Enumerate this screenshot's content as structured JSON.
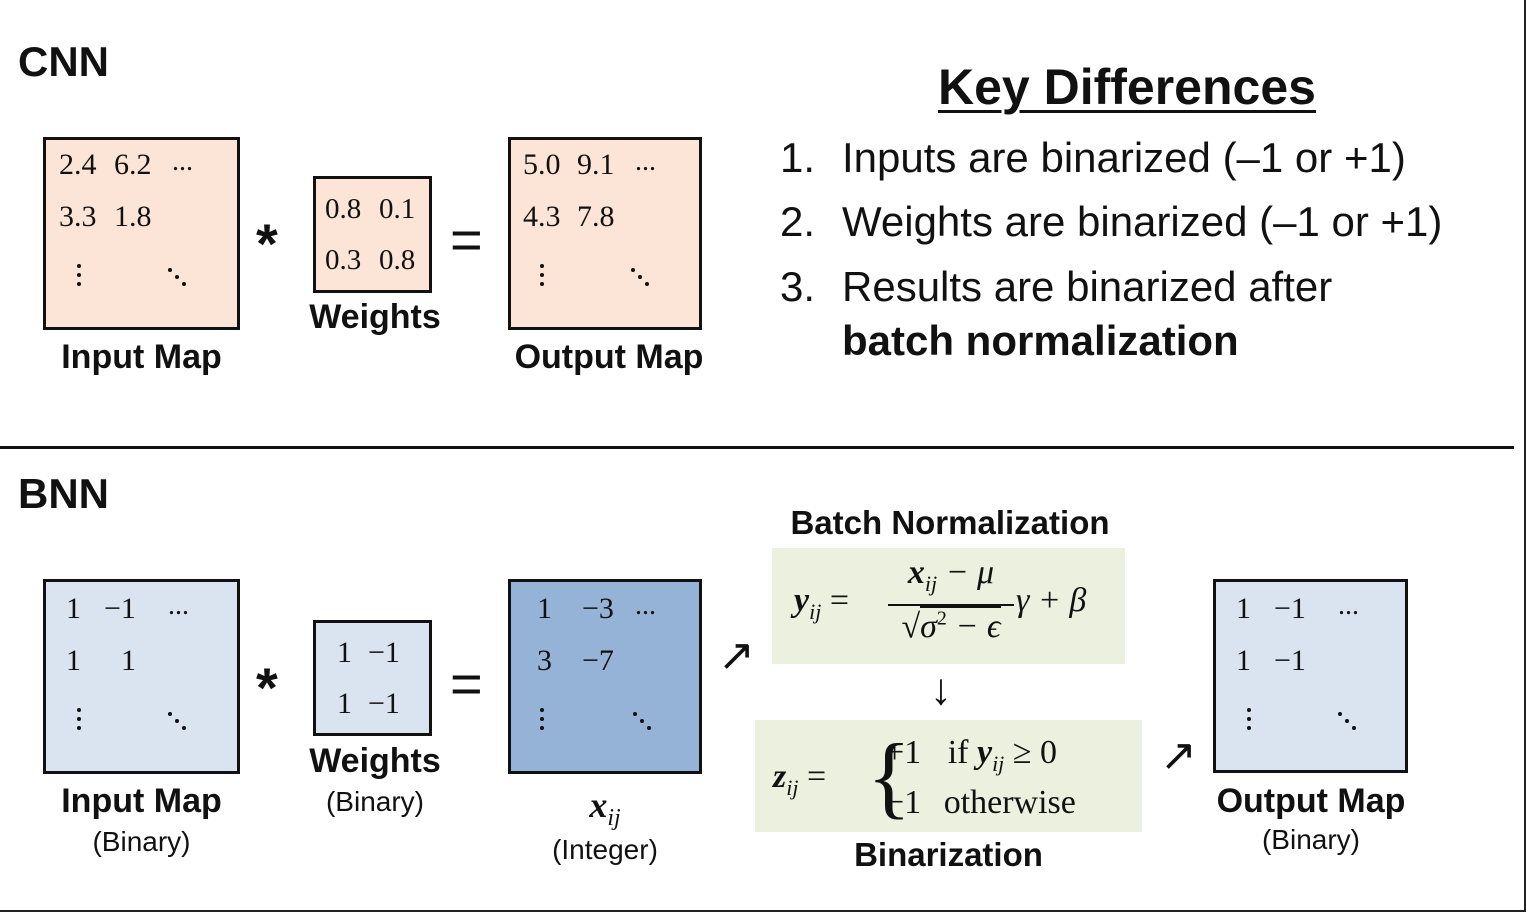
{
  "cnn": {
    "title": "CNN",
    "input_map": {
      "rows": [
        [
          "2.4",
          "6.2",
          "..."
        ],
        [
          "3.3",
          "1.8"
        ]
      ],
      "label": "Input Map"
    },
    "operator": "*",
    "weights": {
      "rows": [
        [
          "0.8",
          "0.1"
        ],
        [
          "0.3",
          "0.8"
        ]
      ],
      "label": "Weights"
    },
    "equals": "=",
    "output_map": {
      "rows": [
        [
          "5.0",
          "9.1",
          "..."
        ],
        [
          "4.3",
          "7.8"
        ]
      ],
      "label": "Output Map"
    }
  },
  "key_differences": {
    "title": "Key Differences",
    "items": [
      {
        "num": "1.",
        "text": "Inputs are binarized (–1 or +1)"
      },
      {
        "num": "2.",
        "text": "Weights are binarized (–1 or +1)"
      },
      {
        "num": "3.",
        "text": "Results are binarized after",
        "bold": "batch normalization"
      }
    ]
  },
  "bnn": {
    "title": "BNN",
    "input_map": {
      "rows": [
        [
          "1",
          "−1",
          "..."
        ],
        [
          "1",
          "1"
        ]
      ],
      "label": "Input Map",
      "sublabel": "(Binary)"
    },
    "operator": "*",
    "weights": {
      "rows": [
        [
          "1",
          "−1"
        ],
        [
          "1",
          "−1"
        ]
      ],
      "label": "Weights",
      "sublabel": "(Binary)"
    },
    "equals": "=",
    "integer_map": {
      "rows": [
        [
          "1",
          "−3",
          "..."
        ],
        [
          "3",
          "−7"
        ]
      ],
      "symbol": "x",
      "subscript": "ij",
      "sublabel": "(Integer)"
    },
    "batch_norm": {
      "title": "Batch Normalization",
      "lhs": "y",
      "lhs_sub": "ij",
      "numerator_var": "x",
      "numerator_sub": "ij",
      "numerator_rest": " − μ",
      "denominator": "σ",
      "denominator_sup": "2",
      "denominator_rest": " − ϵ",
      "tail": "γ + β"
    },
    "binarization": {
      "title": "Binarization",
      "lhs": "z",
      "lhs_sub": "ij",
      "case1_value": "+1",
      "case1_cond_prefix": "if ",
      "case1_var": "y",
      "case1_sub": "ij",
      "case1_cond_suffix": " ≥ 0",
      "case2_value": "−1",
      "case2_cond": "otherwise"
    },
    "down_arrow": "↓",
    "diag_arrow": "↗",
    "output_map": {
      "rows": [
        [
          "1",
          "−1",
          "..."
        ],
        [
          "1",
          "−1"
        ]
      ],
      "label": "Output Map",
      "sublabel": "(Binary)"
    }
  },
  "colors": {
    "cnn_fill": "#fce4d6",
    "bnn_light_fill": "#dae3f0",
    "bnn_integer_fill": "#95b3d7",
    "formula_fill": "#ebf1de"
  }
}
